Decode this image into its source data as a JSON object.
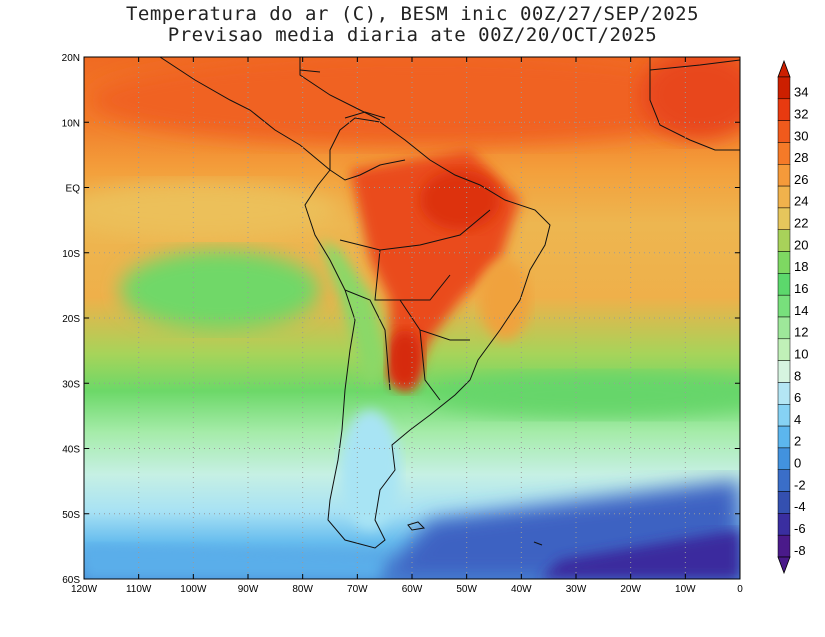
{
  "title_line1": "Temperatura do ar (C), BESM inic 00Z/27/SEP/2025",
  "title_line2": "Previsao media diaria ate 00Z/20/OCT/2025",
  "lat_labels": [
    "20N",
    "10N",
    "EQ",
    "10S",
    "20S",
    "30S",
    "40S",
    "50S",
    "60S"
  ],
  "lon_labels": [
    "120W",
    "110W",
    "100W",
    "90W",
    "80W",
    "70W",
    "60W",
    "50W",
    "40W",
    "30W",
    "20W",
    "10W",
    "0"
  ],
  "colorbar": {
    "labels": [
      "34",
      "32",
      "30",
      "28",
      "26",
      "24",
      "22",
      "20",
      "18",
      "16",
      "14",
      "12",
      "10",
      "8",
      "6",
      "4",
      "2",
      "0",
      "-2",
      "-4",
      "-6",
      "-8"
    ],
    "colors": [
      "#cc1f00",
      "#e83a10",
      "#f05a1c",
      "#f57a28",
      "#f59a3a",
      "#f0b24c",
      "#e6c65c",
      "#a8d25a",
      "#7ed862",
      "#5cd86c",
      "#78e07c",
      "#9ee89a",
      "#c0f0b8",
      "#d6f4e0",
      "#b4e6f4",
      "#86d2f4",
      "#5cb6ee",
      "#4292de",
      "#3a6ec8",
      "#3450b0",
      "#3a2ea0",
      "#4a1a8a"
    ],
    "top_color": "#cc1f00",
    "bottom_color": "#4a1a8a"
  }
}
